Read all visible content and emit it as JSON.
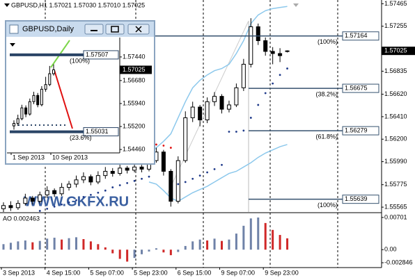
{
  "chart_data": [
    {
      "type": "candlestick",
      "title": "GBPUSD,H1  1.57021 1.57030 1.57010 1.57025",
      "open": [
        1.5555,
        1.5558,
        1.5556,
        1.556,
        1.5565,
        1.5562,
        1.5568,
        1.5572,
        1.5569,
        1.5575,
        1.5578,
        1.5582,
        1.5585,
        1.558,
        1.5586,
        1.559,
        1.5588,
        1.5593,
        1.5591,
        1.5594,
        1.5592,
        1.56,
        1.5608,
        1.559,
        1.5562,
        1.56,
        1.564,
        1.565,
        1.5638,
        1.5655,
        1.566,
        1.5648,
        1.5652,
        1.5668,
        1.569,
        1.5725,
        1.5712,
        1.5702,
        1.57,
        1.57021
      ],
      "high": [
        1.5561,
        1.5562,
        1.5563,
        1.5569,
        1.5567,
        1.5571,
        1.5576,
        1.5574,
        1.5579,
        1.5581,
        1.5586,
        1.5589,
        1.5587,
        1.559,
        1.5594,
        1.5593,
        1.5597,
        1.5595,
        1.5598,
        1.5596,
        1.5604,
        1.5612,
        1.561,
        1.5592,
        1.5604,
        1.5646,
        1.5655,
        1.5652,
        1.5659,
        1.5664,
        1.5662,
        1.5656,
        1.5672,
        1.5695,
        1.5733,
        1.5728,
        1.5715,
        1.5706,
        1.5705,
        1.5703
      ],
      "low": [
        1.5552,
        1.5553,
        1.5554,
        1.5558,
        1.5559,
        1.556,
        1.5565,
        1.5566,
        1.5567,
        1.5572,
        1.5575,
        1.5579,
        1.5577,
        1.5578,
        1.5583,
        1.5585,
        1.5586,
        1.5588,
        1.5589,
        1.5589,
        1.559,
        1.5598,
        1.5586,
        1.5557,
        1.556,
        1.5598,
        1.5636,
        1.5632,
        1.5635,
        1.5651,
        1.5644,
        1.5645,
        1.565,
        1.5665,
        1.5687,
        1.5708,
        1.5698,
        1.569,
        1.5692,
        1.5701
      ],
      "close": [
        1.5558,
        1.5556,
        1.556,
        1.5565,
        1.5562,
        1.5568,
        1.5572,
        1.5569,
        1.5575,
        1.5578,
        1.5582,
        1.5585,
        1.558,
        1.5586,
        1.559,
        1.5588,
        1.5593,
        1.5591,
        1.5594,
        1.5592,
        1.56,
        1.5608,
        1.559,
        1.5562,
        1.56,
        1.564,
        1.565,
        1.5638,
        1.5655,
        1.566,
        1.5648,
        1.5652,
        1.5668,
        1.569,
        1.5725,
        1.5712,
        1.5702,
        1.57,
        1.5698,
        1.57025
      ],
      "sar": [
        null,
        null,
        null,
        null,
        null,
        1.5553,
        1.5555,
        1.5557,
        1.5559,
        1.5561,
        1.5563,
        1.5566,
        1.5568,
        1.557,
        1.5572,
        1.5575,
        1.5577,
        1.5579,
        1.5581,
        1.5583,
        1.5585,
        1.5615,
        1.5614,
        1.5612,
        1.5578,
        1.558,
        1.5583,
        1.5586,
        1.5589,
        1.5592,
        1.5596,
        1.5627,
        1.5627,
        1.5628,
        1.564,
        1.5652,
        1.5663,
        1.5672,
        1.568,
        1.5686
      ],
      "band_upper": [
        null,
        null,
        null,
        null,
        null,
        null,
        null,
        null,
        null,
        null,
        null,
        null,
        null,
        null,
        null,
        null,
        null,
        null,
        null,
        null,
        1.5606,
        1.5612,
        1.5618,
        1.5625,
        1.564,
        1.5655,
        1.5668,
        1.5675,
        1.568,
        1.5684,
        1.5686,
        1.569,
        1.57,
        1.5712,
        1.5728,
        1.5736,
        1.574,
        1.5742,
        1.5743,
        1.5744
      ],
      "band_lower": [
        null,
        null,
        null,
        null,
        null,
        null,
        null,
        null,
        null,
        null,
        null,
        null,
        null,
        null,
        null,
        null,
        null,
        null,
        null,
        null,
        1.558,
        1.5578,
        1.5572,
        1.5565,
        1.5562,
        1.5566,
        1.557,
        1.5573,
        1.5576,
        1.558,
        1.5584,
        1.5588,
        1.559,
        1.5594,
        1.5598,
        1.5603,
        1.5607,
        1.561,
        1.5613,
        1.5615
      ],
      "up_color": "#ffffff",
      "down_color": "#000000",
      "sar_color": "#1f3a8a",
      "sar_down_color": "#e01010",
      "band_color": "#8cc8ec",
      "ylim": [
        1.5552,
        1.575
      ],
      "yticks": [
        1.57465,
        1.57255,
        1.56835,
        {
          "value": 1.5662,
          "label": "1.56620"
        },
        {
          "value": 1.5641,
          "label": "1.56410"
        },
        {
          "value": 1.562,
          "label": "1.56200"
        },
        {
          "value": 1.5599,
          "label": "1.55990"
        },
        1.55775,
        1.55565
      ],
      "xticks": [
        {
          "value": 0,
          "label": "3 Sep 2013"
        },
        {
          "value": 6,
          "label": "4 Sep 15:00"
        },
        {
          "value": 12,
          "label": "5 Sep 07:00"
        },
        {
          "value": 18,
          "label": "5 Sep 23:00"
        },
        {
          "value": 24,
          "label": "6 Sep 15:00"
        },
        {
          "value": 30,
          "label": "9 Sep 07:00"
        },
        {
          "value": 36,
          "label": "9 Sep 23:00"
        }
      ],
      "current_price": 1.57025,
      "levels": [
        {
          "value": 1.57164,
          "pct": "(100%)"
        },
        {
          "value": 1.56675,
          "pct": "(38.2%)"
        },
        {
          "value": 1.56279,
          "pct": "(61.8%)"
        },
        {
          "value": 1.55639,
          "pct": "(100%)"
        }
      ],
      "level_color": "#34506e"
    },
    {
      "type": "bar",
      "title": "AO 0.002463",
      "values": [
        0.0012,
        0.0015,
        0.0018,
        0.002,
        0.0016,
        0.0019,
        0.0024,
        0.0026,
        0.0022,
        0.0025,
        0.0027,
        0.0023,
        0.0018,
        0.0012,
        0.0005,
        -0.0008,
        -0.002,
        -0.0026,
        -0.0018,
        -0.001,
        -0.0004,
        0.0003,
        -0.0006,
        -0.0012,
        -0.0005,
        0.0008,
        0.0018,
        0.0022,
        0.002,
        0.0024,
        0.0019,
        0.0022,
        0.0035,
        0.0052,
        0.0068,
        0.007,
        0.0058,
        0.0043,
        0.0032,
        0.002463
      ],
      "up_color": "#6f82a8",
      "down_color": "#d02828",
      "ylim": [
        -0.0039,
        0.0079
      ],
      "yticks": [
        0.00701,
        {
          "value": 0,
          "label": "0.00"
        },
        -0.002846
      ]
    },
    {
      "type": "candlestick",
      "title": "GBPUSD,Daily",
      "open": [
        1.5522,
        1.553,
        1.5545,
        1.558,
        1.556,
        1.56,
        1.562,
        1.559,
        1.564,
        1.5655,
        1.569
      ],
      "high": [
        1.554,
        1.5558,
        1.559,
        1.5588,
        1.561,
        1.5632,
        1.5628,
        1.565,
        1.568,
        1.5715,
        1.572
      ],
      "low": [
        1.551,
        1.5522,
        1.554,
        1.555,
        1.5555,
        1.5592,
        1.5582,
        1.5585,
        1.5632,
        1.565,
        1.5684
      ],
      "close": [
        1.553,
        1.5545,
        1.558,
        1.556,
        1.56,
        1.562,
        1.559,
        1.564,
        1.5655,
        1.569,
        1.57025
      ],
      "up_color": "#ffffff",
      "down_color": "#000000",
      "ylim": [
        1.5435,
        1.5802
      ],
      "yticks": [
        {
          "value": 1.5744,
          "label": "1.57440"
        },
        {
          "value": 1.5668,
          "label": "1.56680"
        },
        {
          "value": 1.5594,
          "label": "1.55940"
        },
        {
          "value": 1.552,
          "label": "1.55200"
        },
        {
          "value": 1.5446,
          "label": "1.54460"
        }
      ],
      "xticks": [
        {
          "value": 0,
          "label": "1 Sep 2013"
        },
        {
          "value": 10,
          "label": "10 Sep 2013"
        }
      ],
      "current_price": 1.57025,
      "levels": [
        {
          "value": 1.57507,
          "pct": "(100%)"
        },
        {
          "value": 1.55031,
          "pct": "(23.6%)"
        }
      ],
      "level_color": "#2a4466"
    }
  ],
  "watermark": "WWW.GKFX.RU"
}
